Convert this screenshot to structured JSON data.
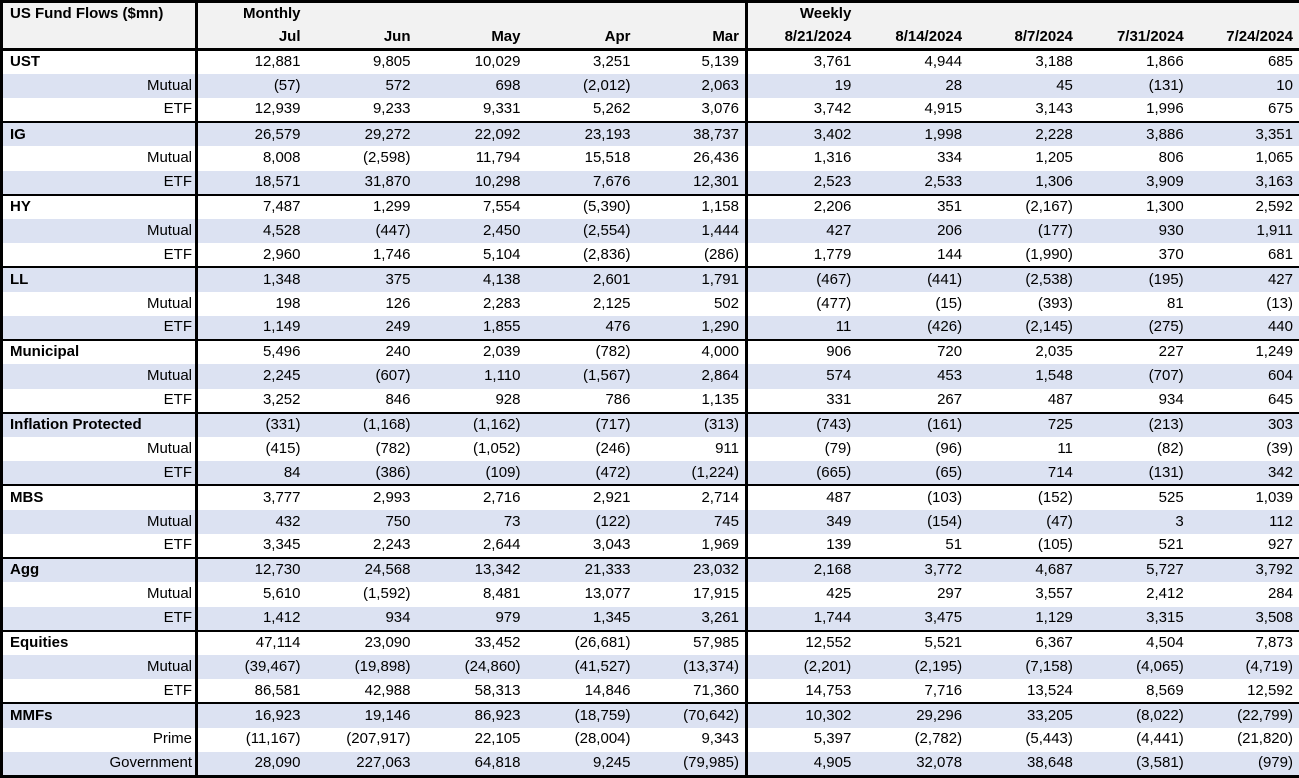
{
  "colors": {
    "row_stripe": "#DCE2F2",
    "header_bg": "#F2F2F2",
    "border": "#000000",
    "background": "#FFFFFF"
  },
  "chart_data": {
    "type": "table",
    "title": "US Fund Flows ($mn)",
    "sections": [
      {
        "label": "Monthly",
        "columns": [
          "Jul",
          "Jun",
          "May",
          "Apr",
          "Mar"
        ]
      },
      {
        "label": "Weekly",
        "columns": [
          "8/21/2024",
          "8/14/2024",
          "8/7/2024",
          "7/31/2024",
          "7/24/2024"
        ]
      }
    ],
    "groups": [
      {
        "name": "UST",
        "rows": [
          {
            "label": "UST",
            "monthly": [
              "12,881",
              "9,805",
              "10,029",
              "3,251",
              "5,139"
            ],
            "weekly": [
              "3,761",
              "4,944",
              "3,188",
              "1,866",
              "685"
            ]
          },
          {
            "label": "Mutual",
            "monthly": [
              "(57)",
              "572",
              "698",
              "(2,012)",
              "2,063"
            ],
            "weekly": [
              "19",
              "28",
              "45",
              "(131)",
              "10"
            ]
          },
          {
            "label": "ETF",
            "monthly": [
              "12,939",
              "9,233",
              "9,331",
              "5,262",
              "3,076"
            ],
            "weekly": [
              "3,742",
              "4,915",
              "3,143",
              "1,996",
              "675"
            ]
          }
        ]
      },
      {
        "name": "IG",
        "rows": [
          {
            "label": "IG",
            "monthly": [
              "26,579",
              "29,272",
              "22,092",
              "23,193",
              "38,737"
            ],
            "weekly": [
              "3,402",
              "1,998",
              "2,228",
              "3,886",
              "3,351"
            ]
          },
          {
            "label": "Mutual",
            "monthly": [
              "8,008",
              "(2,598)",
              "11,794",
              "15,518",
              "26,436"
            ],
            "weekly": [
              "1,316",
              "334",
              "1,205",
              "806",
              "1,065"
            ]
          },
          {
            "label": "ETF",
            "monthly": [
              "18,571",
              "31,870",
              "10,298",
              "7,676",
              "12,301"
            ],
            "weekly": [
              "2,523",
              "2,533",
              "1,306",
              "3,909",
              "3,163"
            ]
          }
        ]
      },
      {
        "name": "HY",
        "rows": [
          {
            "label": "HY",
            "monthly": [
              "7,487",
              "1,299",
              "7,554",
              "(5,390)",
              "1,158"
            ],
            "weekly": [
              "2,206",
              "351",
              "(2,167)",
              "1,300",
              "2,592"
            ]
          },
          {
            "label": "Mutual",
            "monthly": [
              "4,528",
              "(447)",
              "2,450",
              "(2,554)",
              "1,444"
            ],
            "weekly": [
              "427",
              "206",
              "(177)",
              "930",
              "1,911"
            ]
          },
          {
            "label": "ETF",
            "monthly": [
              "2,960",
              "1,746",
              "5,104",
              "(2,836)",
              "(286)"
            ],
            "weekly": [
              "1,779",
              "144",
              "(1,990)",
              "370",
              "681"
            ]
          }
        ]
      },
      {
        "name": "LL",
        "rows": [
          {
            "label": "LL",
            "monthly": [
              "1,348",
              "375",
              "4,138",
              "2,601",
              "1,791"
            ],
            "weekly": [
              "(467)",
              "(441)",
              "(2,538)",
              "(195)",
              "427"
            ]
          },
          {
            "label": "Mutual",
            "monthly": [
              "198",
              "126",
              "2,283",
              "2,125",
              "502"
            ],
            "weekly": [
              "(477)",
              "(15)",
              "(393)",
              "81",
              "(13)"
            ]
          },
          {
            "label": "ETF",
            "monthly": [
              "1,149",
              "249",
              "1,855",
              "476",
              "1,290"
            ],
            "weekly": [
              "11",
              "(426)",
              "(2,145)",
              "(275)",
              "440"
            ]
          }
        ]
      },
      {
        "name": "Municipal",
        "rows": [
          {
            "label": "Municipal",
            "monthly": [
              "5,496",
              "240",
              "2,039",
              "(782)",
              "4,000"
            ],
            "weekly": [
              "906",
              "720",
              "2,035",
              "227",
              "1,249"
            ]
          },
          {
            "label": "Mutual",
            "monthly": [
              "2,245",
              "(607)",
              "1,110",
              "(1,567)",
              "2,864"
            ],
            "weekly": [
              "574",
              "453",
              "1,548",
              "(707)",
              "604"
            ]
          },
          {
            "label": "ETF",
            "monthly": [
              "3,252",
              "846",
              "928",
              "786",
              "1,135"
            ],
            "weekly": [
              "331",
              "267",
              "487",
              "934",
              "645"
            ]
          }
        ]
      },
      {
        "name": "Inflation Protected",
        "rows": [
          {
            "label": "Inflation Protected",
            "monthly": [
              "(331)",
              "(1,168)",
              "(1,162)",
              "(717)",
              "(313)"
            ],
            "weekly": [
              "(743)",
              "(161)",
              "725",
              "(213)",
              "303"
            ]
          },
          {
            "label": "Mutual",
            "monthly": [
              "(415)",
              "(782)",
              "(1,052)",
              "(246)",
              "911"
            ],
            "weekly": [
              "(79)",
              "(96)",
              "11",
              "(82)",
              "(39)"
            ]
          },
          {
            "label": "ETF",
            "monthly": [
              "84",
              "(386)",
              "(109)",
              "(472)",
              "(1,224)"
            ],
            "weekly": [
              "(665)",
              "(65)",
              "714",
              "(131)",
              "342"
            ]
          }
        ]
      },
      {
        "name": "MBS",
        "rows": [
          {
            "label": "MBS",
            "monthly": [
              "3,777",
              "2,993",
              "2,716",
              "2,921",
              "2,714"
            ],
            "weekly": [
              "487",
              "(103)",
              "(152)",
              "525",
              "1,039"
            ]
          },
          {
            "label": "Mutual",
            "monthly": [
              "432",
              "750",
              "73",
              "(122)",
              "745"
            ],
            "weekly": [
              "349",
              "(154)",
              "(47)",
              "3",
              "112"
            ]
          },
          {
            "label": "ETF",
            "monthly": [
              "3,345",
              "2,243",
              "2,644",
              "3,043",
              "1,969"
            ],
            "weekly": [
              "139",
              "51",
              "(105)",
              "521",
              "927"
            ]
          }
        ]
      },
      {
        "name": "Agg",
        "rows": [
          {
            "label": "Agg",
            "monthly": [
              "12,730",
              "24,568",
              "13,342",
              "21,333",
              "23,032"
            ],
            "weekly": [
              "2,168",
              "3,772",
              "4,687",
              "5,727",
              "3,792"
            ]
          },
          {
            "label": "Mutual",
            "monthly": [
              "5,610",
              "(1,592)",
              "8,481",
              "13,077",
              "17,915"
            ],
            "weekly": [
              "425",
              "297",
              "3,557",
              "2,412",
              "284"
            ]
          },
          {
            "label": "ETF",
            "monthly": [
              "1,412",
              "934",
              "979",
              "1,345",
              "3,261"
            ],
            "weekly": [
              "1,744",
              "3,475",
              "1,129",
              "3,315",
              "3,508"
            ]
          }
        ]
      },
      {
        "name": "Equities",
        "rows": [
          {
            "label": "Equities",
            "monthly": [
              "47,114",
              "23,090",
              "33,452",
              "(26,681)",
              "57,985"
            ],
            "weekly": [
              "12,552",
              "5,521",
              "6,367",
              "4,504",
              "7,873"
            ]
          },
          {
            "label": "Mutual",
            "monthly": [
              "(39,467)",
              "(19,898)",
              "(24,860)",
              "(41,527)",
              "(13,374)"
            ],
            "weekly": [
              "(2,201)",
              "(2,195)",
              "(7,158)",
              "(4,065)",
              "(4,719)"
            ]
          },
          {
            "label": "ETF",
            "monthly": [
              "86,581",
              "42,988",
              "58,313",
              "14,846",
              "71,360"
            ],
            "weekly": [
              "14,753",
              "7,716",
              "13,524",
              "8,569",
              "12,592"
            ]
          }
        ]
      },
      {
        "name": "MMFs",
        "rows": [
          {
            "label": "MMFs",
            "monthly": [
              "16,923",
              "19,146",
              "86,923",
              "(18,759)",
              "(70,642)"
            ],
            "weekly": [
              "10,302",
              "29,296",
              "33,205",
              "(8,022)",
              "(22,799)"
            ]
          },
          {
            "label": "Prime",
            "monthly": [
              "(11,167)",
              "(207,917)",
              "22,105",
              "(28,004)",
              "9,343"
            ],
            "weekly": [
              "5,397",
              "(2,782)",
              "(5,443)",
              "(4,441)",
              "(21,820)"
            ]
          },
          {
            "label": "Government",
            "monthly": [
              "28,090",
              "227,063",
              "64,818",
              "9,245",
              "(79,985)"
            ],
            "weekly": [
              "4,905",
              "32,078",
              "38,648",
              "(3,581)",
              "(979)"
            ]
          }
        ]
      }
    ]
  }
}
